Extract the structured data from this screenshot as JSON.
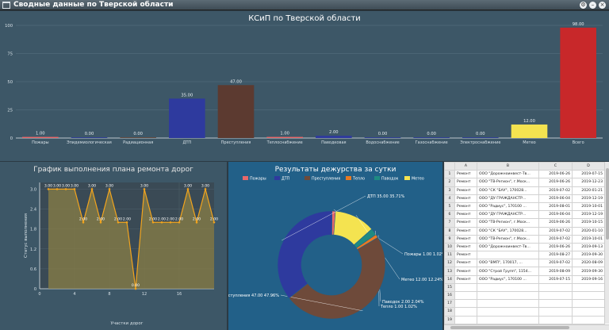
{
  "window": {
    "title": "Сводные данные по Тверской области"
  },
  "top_chart": {
    "chart_data": {
      "type": "bar",
      "title": "КСиП по Тверской области",
      "categories": [
        "Пожары",
        "Эпидемиологическая",
        "Радиационная",
        "ДТП",
        "Преступления",
        "Теплоснабжение",
        "Паводковая",
        "Водоснабжение",
        "Газоснабжение",
        "Электроснабжение",
        "Метео",
        "Всего"
      ],
      "values": [
        1.0,
        0.0,
        0.0,
        35.0,
        47.0,
        1.0,
        2.0,
        0.0,
        0.0,
        0.0,
        12.0,
        98.0
      ],
      "value_labels": [
        "1.00",
        "0.00",
        "0.00",
        "35.00",
        "47.00",
        "1.00",
        "2.00",
        "0.00",
        "0.00",
        "0.00",
        "12.00",
        "98.00"
      ],
      "colors": [
        "#e8686a",
        "#2e3a9e",
        "#6e4a3a",
        "#2e3a9e",
        "#5c3a30",
        "#e8686a",
        "#2e3a9e",
        "#2e3a9e",
        "#2e3a9e",
        "#2e3a9e",
        "#f4e350",
        "#c8282a"
      ],
      "yticks": [
        "0",
        "25",
        "50",
        "75",
        "100"
      ],
      "ylim": [
        0,
        100
      ],
      "grid": true
    }
  },
  "gantt_chart": {
    "chart_data": {
      "type": "line",
      "title": "График выполнения плана ремонта дорог",
      "xlabel": "Участки дорог",
      "ylabel": "Статус выполнения",
      "x": [
        1,
        2,
        3,
        4,
        5,
        6,
        7,
        8,
        9,
        10,
        11,
        12,
        13,
        14,
        15,
        16,
        17,
        18,
        19,
        20
      ],
      "y": [
        3.0,
        3.0,
        3.0,
        3.0,
        2.0,
        3.0,
        2.0,
        3.0,
        2.0,
        2.0,
        0.0,
        3.0,
        2.0,
        2.0,
        2.0,
        2.0,
        3.0,
        2.0,
        3.0,
        2.0
      ],
      "point_labels": [
        "3.00",
        "3.00",
        "3.00",
        "3.00",
        "2.00",
        "3.00",
        "2.00",
        "3.00",
        "2.00",
        "2.00",
        "0.00",
        "3.00",
        "2.00",
        "2.00",
        "2.00",
        "2.00",
        "3.00",
        "2.00",
        "3.00",
        "2.00"
      ],
      "yticks": [
        "0",
        "0.6",
        "1.2",
        "1.8",
        "2.4",
        "3.0"
      ],
      "xticks": [
        "0",
        "4",
        "8",
        "12",
        "16"
      ],
      "ylim": [
        0,
        3.2
      ],
      "grid": true
    }
  },
  "donut_chart": {
    "chart_data": {
      "type": "pie",
      "title": "Результаты дежурства за сутки",
      "categories": [
        "Пожары",
        "ДТП",
        "Преступления",
        "Тепло",
        "Паводок",
        "Метео"
      ],
      "values": [
        1.0,
        35.0,
        47.0,
        1.0,
        2.0,
        12.0
      ],
      "percent": [
        1.02,
        35.71,
        47.96,
        1.02,
        2.04,
        12.24
      ],
      "colors": [
        "#e8686a",
        "#2e3a9e",
        "#6e4a3a",
        "#e87a22",
        "#1f8a82",
        "#f4e350"
      ],
      "slice_labels": [
        "Пожары 1.00 1.02%",
        "ДТП 35.00 35.71%",
        "Преступления 47.00 47.96%",
        "Тепло 1.00 1.02%",
        "Паводок 2.00 2.04%",
        "Метео 12.00 12.24%"
      ],
      "legend": "top"
    }
  },
  "table": {
    "columns": [
      "",
      "A",
      "B",
      "C",
      "D"
    ],
    "rows": [
      {
        "n": "1",
        "a": "Ремонт",
        "b": "ООО \"Дорожноинвест-Тв...",
        "c": "2019-06-26",
        "d": "2019-07-15"
      },
      {
        "n": "2",
        "a": "Ремонт",
        "b": "ООО \"ТВ-Регион\", г.Моск...",
        "c": "2019-06-26",
        "d": "2019-12-23"
      },
      {
        "n": "3",
        "a": "Ремонт",
        "b": "ООО \"СК \"БАУ\", 170028...",
        "c": "2019-07-02",
        "d": "2020-01-21"
      },
      {
        "n": "4",
        "a": "Ремонт",
        "b": "ООО \"ДУ ГРАЖДАНСТР...",
        "c": "2019-06-04",
        "d": "2019-12-19"
      },
      {
        "n": "5",
        "a": "Ремонт",
        "b": "ООО \"Радиус\", 170100 ...",
        "c": "2019-08-01",
        "d": "2019-10-01"
      },
      {
        "n": "6",
        "a": "Ремонт",
        "b": "ООО \"ДУ ГРАЖДАНСТР...",
        "c": "2019-06-04",
        "d": "2019-12-19"
      },
      {
        "n": "7",
        "a": "Ремонт",
        "b": "ООО \"ТВ-Регион\", г.Моск...",
        "c": "2019-06-26",
        "d": "2019-10-15"
      },
      {
        "n": "8",
        "a": "Ремонт",
        "b": "ООО \"СК \"БАУ\", 170028...",
        "c": "2019-07-02",
        "d": "2020-01-10"
      },
      {
        "n": "9",
        "a": "Ремонт",
        "b": "ООО \"ТВ-Регион\", г.Моск...",
        "c": "2019-07-02",
        "d": "2019-10-01"
      },
      {
        "n": "10",
        "a": "Ремонт",
        "b": "ООО \"Дорожноинвест-Тв...",
        "c": "2019-06-26",
        "d": "2019-09-13"
      },
      {
        "n": "11",
        "a": "Ремонт",
        "b": "",
        "c": "2019-08-27",
        "d": "2019-09-30"
      },
      {
        "n": "12",
        "a": "Ремонт",
        "b": "ООО \"ВМП\", 170017, ...",
        "c": "2019-07-02",
        "d": "2020-08-09"
      },
      {
        "n": "13",
        "a": "Ремонт",
        "b": "ООО \"Строй Групп\", 1154...",
        "c": "2019-08-09",
        "d": "2019-09-30"
      },
      {
        "n": "14",
        "a": "Ремонт",
        "b": "ООО \"Радиус\", 170100 ...",
        "c": "2019-07-15",
        "d": "2019-09-16"
      },
      {
        "n": "15",
        "a": "",
        "b": "",
        "c": "",
        "d": ""
      },
      {
        "n": "16",
        "a": "",
        "b": "",
        "c": "",
        "d": ""
      },
      {
        "n": "17",
        "a": "",
        "b": "",
        "c": "",
        "d": ""
      },
      {
        "n": "18",
        "a": "",
        "b": "",
        "c": "",
        "d": ""
      },
      {
        "n": "19",
        "a": "",
        "b": "",
        "c": "",
        "d": ""
      }
    ]
  }
}
